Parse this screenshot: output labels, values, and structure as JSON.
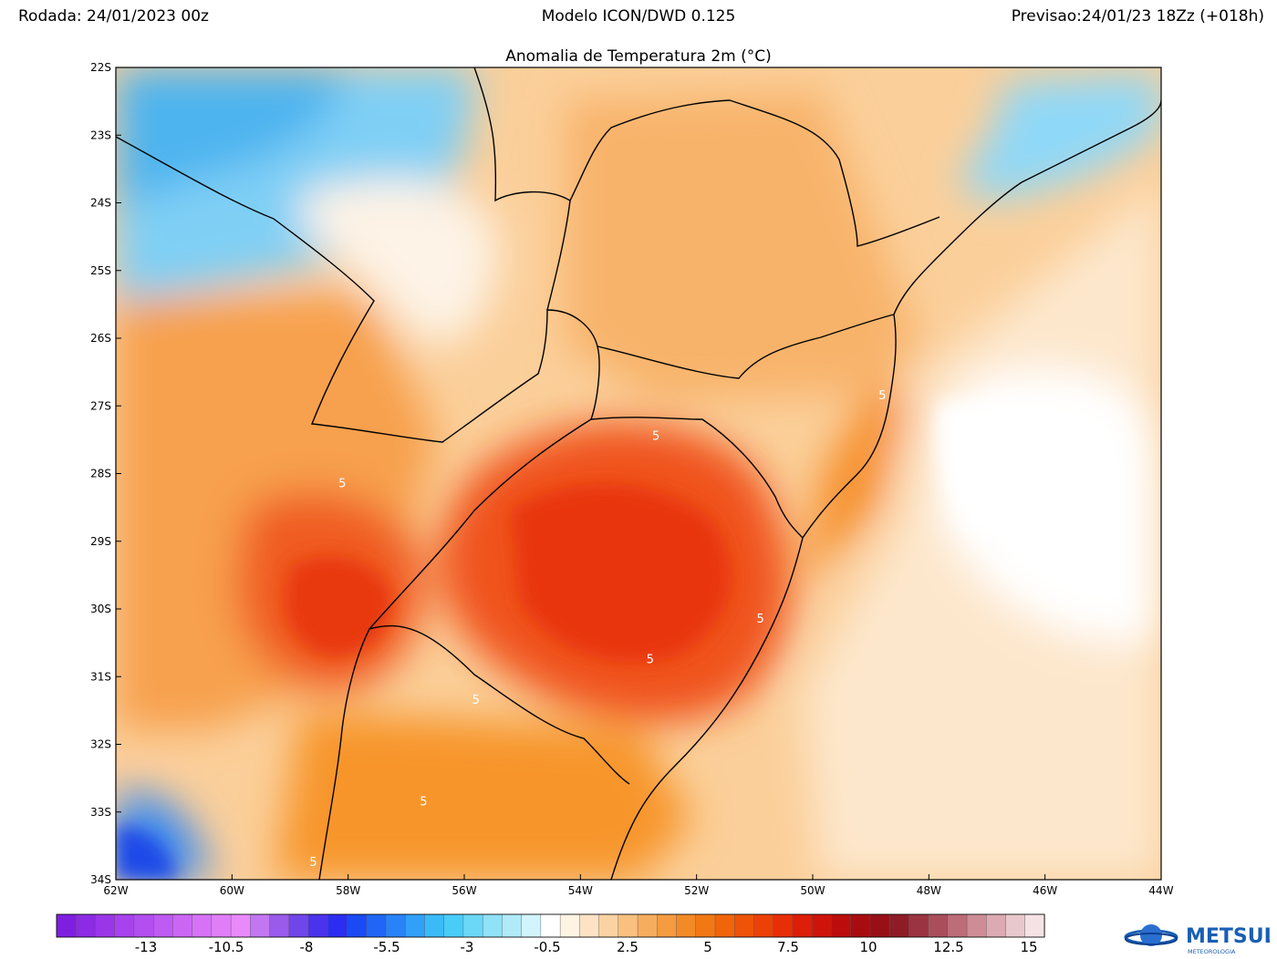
{
  "header": {
    "run": "Rodada: 24/01/2023 00z",
    "model": "Modelo ICON/DWD 0.125",
    "forecast": "Previsao:24/01/23 18Zz (+018h)"
  },
  "map": {
    "title": "Anomalia de Temperatura 2m (°C)",
    "lat_labels": [
      "22S",
      "23S",
      "24S",
      "25S",
      "26S",
      "27S",
      "28S",
      "29S",
      "30S",
      "31S",
      "32S",
      "33S",
      "34S"
    ],
    "lon_labels": [
      "62W",
      "60W",
      "58W",
      "56W",
      "54W",
      "52W",
      "50W",
      "48W",
      "46W",
      "44W"
    ],
    "contour_labels": [
      {
        "text": "5",
        "lon": -58.1,
        "lat": -28.2
      },
      {
        "text": "5",
        "lon": -52.7,
        "lat": -27.5
      },
      {
        "text": "5",
        "lon": -48.8,
        "lat": -26.9
      },
      {
        "text": "5",
        "lon": -50.9,
        "lat": -30.2
      },
      {
        "text": "5",
        "lon": -52.8,
        "lat": -30.8
      },
      {
        "text": "5",
        "lon": -55.8,
        "lat": -31.4
      },
      {
        "text": "5",
        "lon": -56.7,
        "lat": -32.9
      },
      {
        "text": "5",
        "lon": -58.6,
        "lat": -33.8
      }
    ]
  },
  "colorbar": {
    "tick_labels": [
      "-13",
      "-10.5",
      "-8",
      "-5.5",
      "-3",
      "-0.5",
      "2.5",
      "5",
      "7.5",
      "10",
      "12.5",
      "15"
    ],
    "colors": [
      "#7e1fe0",
      "#8c2ae4",
      "#9a36e8",
      "#a742ec",
      "#b34ef0",
      "#bf5af2",
      "#cb66f4",
      "#d672f6",
      "#e07ef8",
      "#e88af9",
      "#c276f0",
      "#9a5aec",
      "#6f46ea",
      "#4a33ea",
      "#2b2ef0",
      "#1a4af4",
      "#1f66f6",
      "#2883f8",
      "#31a0f8",
      "#3abbf8",
      "#48cdf8",
      "#6bd8f8",
      "#8fe2f8",
      "#b0ebfa",
      "#d2f4fc",
      "#ffffff",
      "#fff3e4",
      "#fde3c4",
      "#fbd2a2",
      "#f9c080",
      "#f7ad5e",
      "#f59b40",
      "#f38a28",
      "#f27814",
      "#f0650a",
      "#ee5308",
      "#ec4106",
      "#e82e06",
      "#dd1e08",
      "#ce140a",
      "#bb0e0c",
      "#a80c10",
      "#981016",
      "#8e1c26",
      "#9a3440",
      "#ab4e5c",
      "#bd6c78",
      "#cd8c96",
      "#dcaab2",
      "#e9c8cc",
      "#f4e2e4"
    ]
  },
  "colors": {
    "cold": "#2b6cf0",
    "cool": "#8cd8f8",
    "neutral": "#ffffff",
    "warm": "#f9b46a",
    "hot": "#f04a10",
    "land_border": "#000000",
    "contour": "#ffffff"
  },
  "logo": {
    "text": "METSUL",
    "sub": "METEOROLOGIA"
  }
}
